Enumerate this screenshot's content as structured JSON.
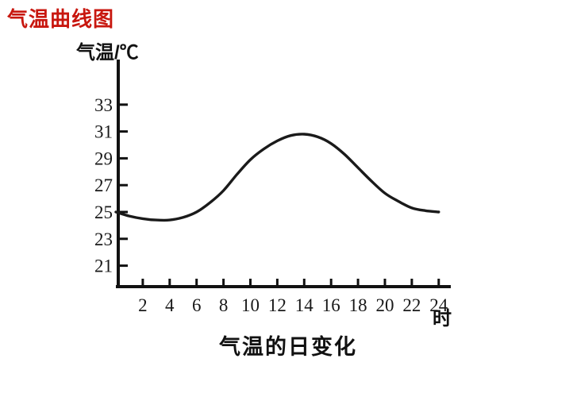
{
  "page": {
    "title": "气温曲线图",
    "title_color": "#c8170f",
    "background": "#ffffff"
  },
  "chart_data": {
    "type": "line",
    "title": "气温的日变化",
    "y_axis_label": "气温/℃",
    "x_unit_label": "时",
    "xlabel": "时",
    "ylabel": "气温/℃",
    "x_ticks": [
      2,
      4,
      6,
      8,
      10,
      12,
      14,
      16,
      18,
      20,
      22,
      24
    ],
    "y_ticks": [
      21,
      23,
      25,
      27,
      29,
      31,
      33
    ],
    "xlim": [
      0,
      24
    ],
    "ylim": [
      19.5,
      34.5
    ],
    "grid": false,
    "legend": false,
    "line_color": "#1a1a1a",
    "axis_color": "#111111",
    "series": [
      {
        "name": "气温",
        "x": [
          0,
          1,
          2,
          3,
          4,
          5,
          6,
          7,
          8,
          9,
          10,
          11,
          12,
          13,
          14,
          15,
          16,
          17,
          18,
          19,
          20,
          21,
          22,
          23,
          24
        ],
        "y": [
          25.0,
          24.7,
          24.5,
          24.4,
          24.4,
          24.6,
          25.0,
          25.7,
          26.6,
          27.8,
          28.9,
          29.7,
          30.3,
          30.7,
          30.8,
          30.6,
          30.1,
          29.3,
          28.3,
          27.3,
          26.4,
          25.8,
          25.3,
          25.1,
          25.0
        ]
      }
    ],
    "min_point": {
      "hour": 4,
      "value": 24.4
    },
    "max_point": {
      "hour": 14,
      "value": 30.8
    }
  }
}
